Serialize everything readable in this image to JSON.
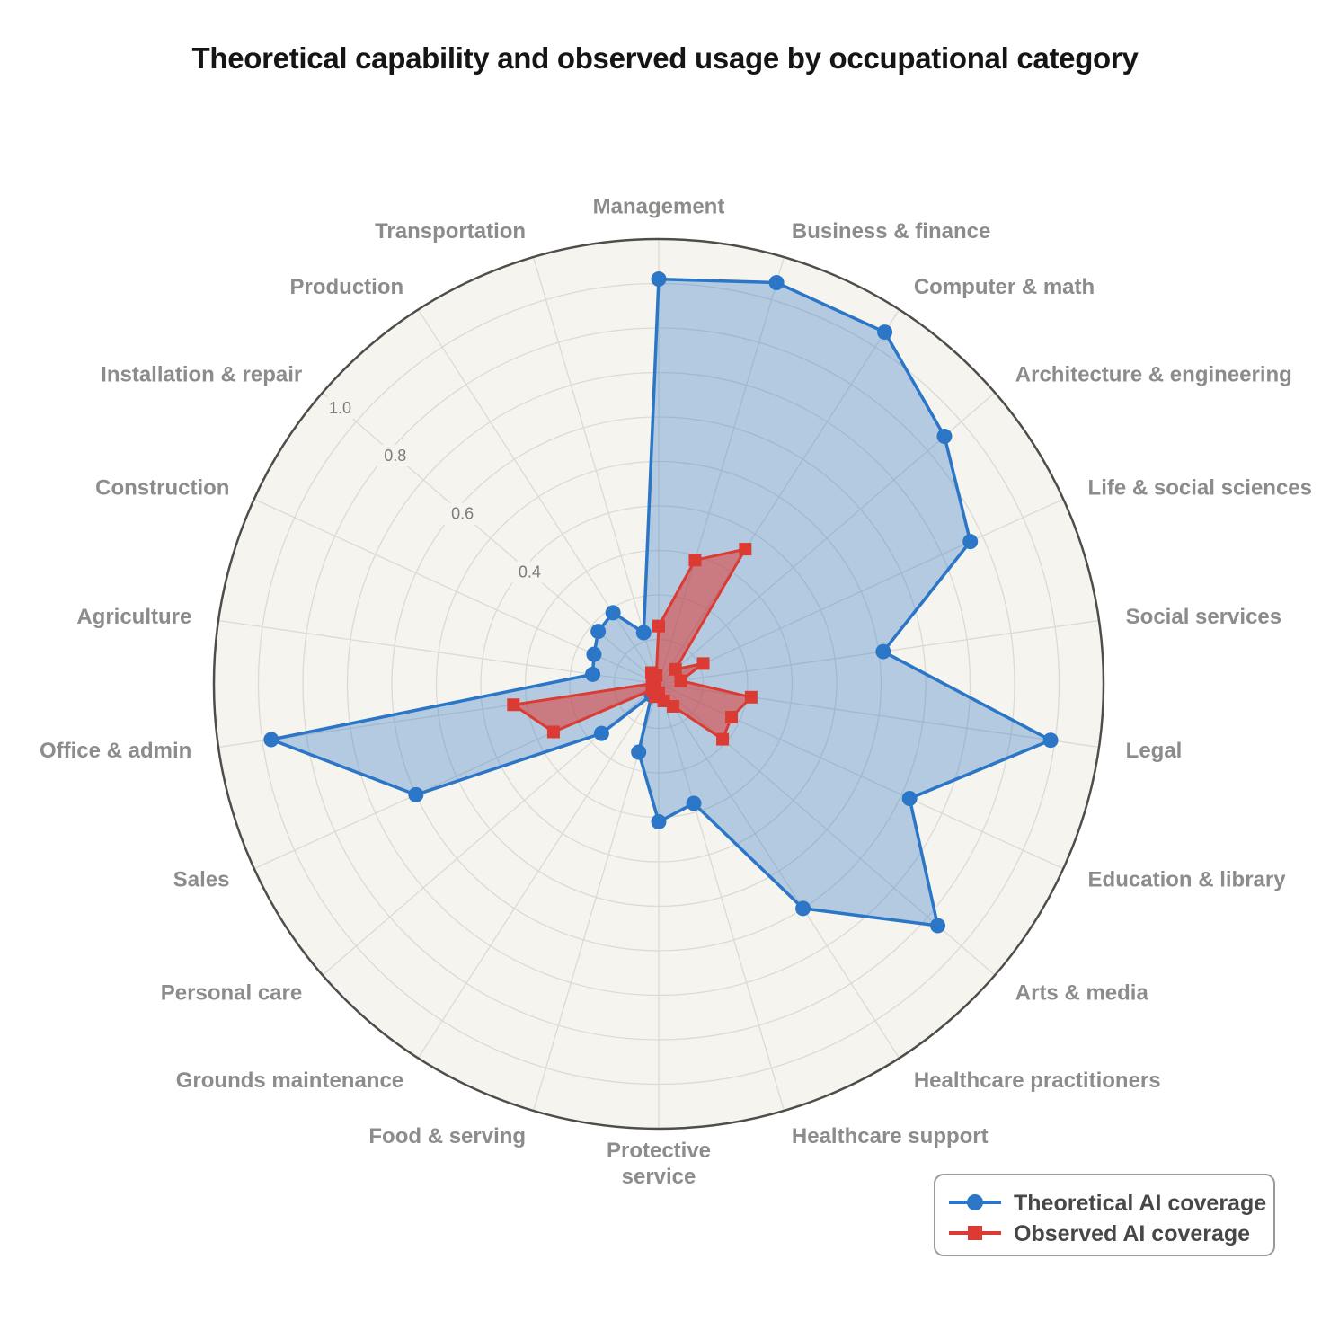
{
  "title": "Theoretical capability and observed usage by occupational category",
  "chart_data": {
    "type": "radar",
    "subtype": "polar line/area, clockwise from top",
    "categories": [
      "Management",
      "Business & finance",
      "Computer & math",
      "Architecture & engineering",
      "Life & social sciences",
      "Social services",
      "Legal",
      "Education & library",
      "Arts & media",
      "Healthcare practitioners",
      "Healthcare support",
      "Protective service",
      "Food & serving",
      "Grounds maintenance",
      "Personal care",
      "Sales",
      "Office & admin",
      "Agriculture",
      "Construction",
      "Installation & repair",
      "Production",
      "Transportation"
    ],
    "series": [
      {
        "name": "Theoretical AI coverage",
        "marker": "circle",
        "color": "#2b76c7",
        "fill_opacity": 0.33,
        "values": [
          0.91,
          0.94,
          0.94,
          0.85,
          0.77,
          0.51,
          0.89,
          0.62,
          0.83,
          0.6,
          0.28,
          0.31,
          0.16,
          0.03,
          0.17,
          0.6,
          0.88,
          0.15,
          0.16,
          0.18,
          0.19,
          0.12
        ]
      },
      {
        "name": "Observed AI coverage",
        "marker": "square",
        "color": "#db3b33",
        "fill_opacity": 0.55,
        "values": [
          0.13,
          0.29,
          0.36,
          0.05,
          0.11,
          0.05,
          0.21,
          0.18,
          0.19,
          0.06,
          0.04,
          0.02,
          0.03,
          0.02,
          0.02,
          0.26,
          0.33,
          0.01,
          0.01,
          0.02,
          0.03,
          0.02
        ]
      }
    ],
    "rlim": [
      0,
      1.0
    ],
    "grid_step": 0.1,
    "radial_ticks": [
      0.4,
      0.6,
      0.8,
      1.0
    ],
    "radial_tick_labels": [
      "0.4",
      "0.6",
      "0.8",
      "1.0"
    ],
    "radial_tick_axis": "Installation & repair",
    "grid": true,
    "legend_position": "lower right"
  },
  "legend": {
    "items": [
      {
        "label": "Theoretical AI coverage"
      },
      {
        "label": "Observed AI coverage"
      }
    ]
  },
  "colors": {
    "theoretical": "#2b76c7",
    "observed": "#db3b33",
    "polar_background": "#f6f4ee",
    "grid": "#dcdad4",
    "outer_ring": "#4f4d49",
    "category_label": "#8c8c8a",
    "tick_label": "#7b7b79",
    "title": "#151515",
    "legend_border": "#9a9a9a",
    "legend_text": "#474747",
    "page_background": "#ffffff"
  }
}
